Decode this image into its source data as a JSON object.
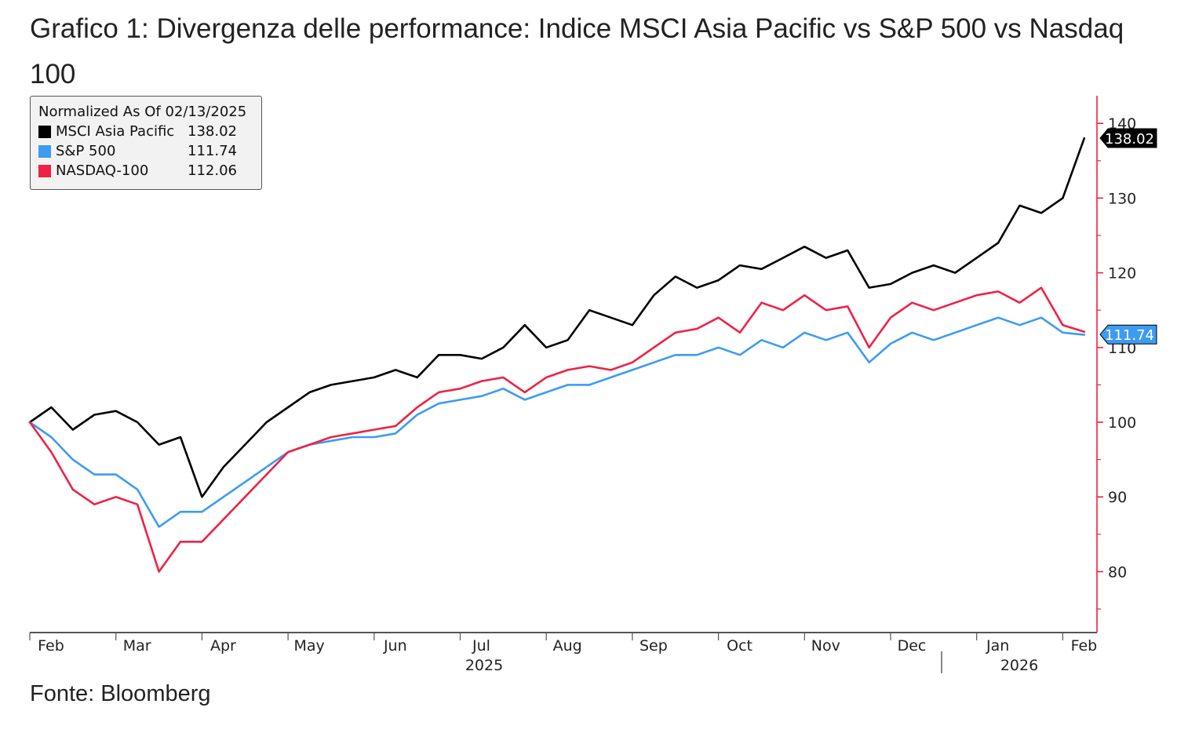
{
  "title": "Grafico 1: Divergenza delle performance: Indice MSCI Asia Pacific vs S&P 500 vs Nasdaq 100",
  "source": "Fonte: Bloomberg",
  "legend": {
    "header": "Normalized As Of 02/13/2025",
    "items": [
      {
        "name": "MSCI Asia Pacific",
        "value": "138.02",
        "color": "#000000"
      },
      {
        "name": "S&P 500",
        "value": "111.74",
        "color": "#3d9bf2"
      },
      {
        "name": "NASDAQ-100",
        "value": "112.06",
        "color": "#ee2244"
      }
    ]
  },
  "chart_data": {
    "type": "line",
    "title": "Grafico 1: Divergenza delle performance: Indice MSCI Asia Pacific vs S&P 500 vs Nasdaq 100",
    "xlabel": "",
    "ylabel": "",
    "ylim": [
      72,
      142
    ],
    "yticks": [
      80,
      90,
      100,
      110,
      120,
      130,
      140
    ],
    "x_month_labels": [
      "Feb",
      "Mar",
      "Apr",
      "May",
      "Jun",
      "Jul",
      "Aug",
      "Sep",
      "Oct",
      "Nov",
      "Dec",
      "Jan",
      "Feb"
    ],
    "x_year_labels": [
      "2025",
      "2026"
    ],
    "x_unit": "months since 2025-02-13",
    "x": [
      0,
      0.25,
      0.5,
      0.75,
      1,
      1.25,
      1.5,
      1.75,
      2,
      2.25,
      2.5,
      2.75,
      3,
      3.25,
      3.5,
      3.75,
      4,
      4.25,
      4.5,
      4.75,
      5,
      5.25,
      5.5,
      5.75,
      6,
      6.25,
      6.5,
      6.75,
      7,
      7.25,
      7.5,
      7.75,
      8,
      8.25,
      8.5,
      8.75,
      9,
      9.25,
      9.5,
      9.75,
      10,
      10.25,
      10.5,
      10.75,
      11,
      11.25,
      11.5,
      11.75,
      12,
      12.25
    ],
    "series": [
      {
        "name": "MSCI Asia Pacific",
        "color": "#000000",
        "last": 138.02,
        "values": [
          100,
          102,
          99,
          101,
          101.5,
          100,
          97,
          98,
          90,
          94,
          97,
          100,
          102,
          104,
          105,
          105.5,
          106,
          107,
          106,
          109,
          109,
          108.5,
          110,
          113,
          110,
          111,
          115,
          114,
          113,
          117,
          119.5,
          118,
          119,
          121,
          120.5,
          122,
          123.5,
          122,
          123,
          118,
          118.5,
          120,
          121,
          120,
          122,
          124,
          129,
          128,
          130,
          138
        ]
      },
      {
        "name": "S&P 500",
        "color": "#3d9bf2",
        "last": 111.74,
        "values": [
          100,
          98,
          95,
          93,
          93,
          91,
          86,
          88,
          88,
          90,
          92,
          94,
          96,
          97,
          97.5,
          98,
          98,
          98.5,
          101,
          102.5,
          103,
          103.5,
          104.5,
          103,
          104,
          105,
          105,
          106,
          107,
          108,
          109,
          109,
          110,
          109,
          111,
          110,
          112,
          111,
          112,
          108,
          110.5,
          112,
          111,
          112,
          113,
          114,
          113,
          114,
          112,
          111.7
        ]
      },
      {
        "name": "NASDAQ-100",
        "color": "#ee2244",
        "last": 112.06,
        "values": [
          100,
          96,
          91,
          89,
          90,
          89,
          80,
          84,
          84,
          87,
          90,
          93,
          96,
          97,
          98,
          98.5,
          99,
          99.5,
          102,
          104,
          104.5,
          105.5,
          106,
          104,
          106,
          107,
          107.5,
          107,
          108,
          110,
          112,
          112.5,
          114,
          112,
          116,
          115,
          117,
          115,
          115.5,
          110,
          114,
          116,
          115,
          116,
          117,
          117.5,
          116,
          118,
          113,
          112.1
        ]
      }
    ]
  }
}
